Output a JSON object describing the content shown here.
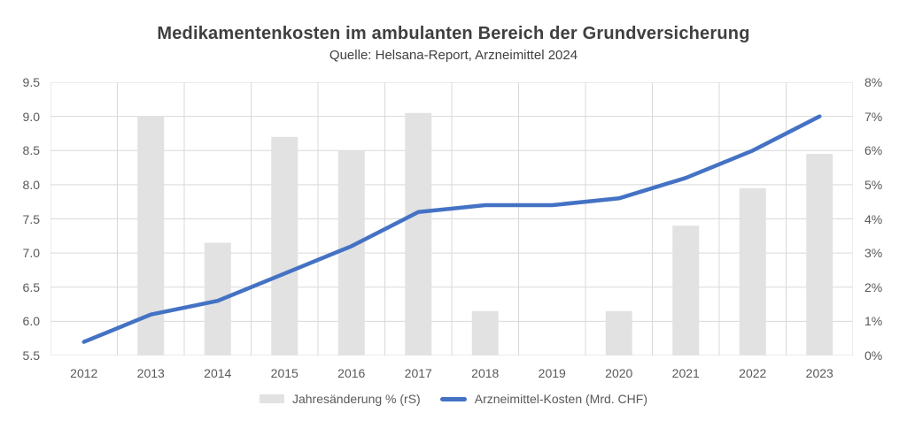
{
  "header": {
    "title": "Medikamentenkosten im ambulanten Bereich der Grundversicherung",
    "subtitle": "Quelle: Helsana-Report, Arzneimittel 2024"
  },
  "colors": {
    "line_series": "#4472c4",
    "bar_series": "#e2e2e2",
    "gridline": "#d9d9d9",
    "axis_text": "#595959",
    "title_text": "#3f3f3f"
  },
  "legend": {
    "items": [
      {
        "label": "Jahresänderung % (rS)",
        "swatch": "bar"
      },
      {
        "label": "Arzneimittel-Kosten (Mrd. CHF)",
        "swatch": "line"
      }
    ]
  },
  "chart_data": {
    "type": "bar",
    "subtype": "combo-bar-line-dual-axis",
    "title": "Medikamentenkosten im ambulanten Bereich der Grundversicherung",
    "subtitle": "Quelle: Helsana-Report, Arzneimittel 2024",
    "categories": [
      "2012",
      "2013",
      "2014",
      "2015",
      "2016",
      "2017",
      "2018",
      "2019",
      "2020",
      "2021",
      "2022",
      "2023"
    ],
    "series": [
      {
        "name": "Jahresänderung % (rS)",
        "type": "bar",
        "axis": "right",
        "unit": "%",
        "values": [
          null,
          7.0,
          3.3,
          6.4,
          6.0,
          7.1,
          1.3,
          0.0,
          1.3,
          3.8,
          4.9,
          5.9
        ]
      },
      {
        "name": "Arzneimittel-Kosten (Mrd. CHF)",
        "type": "line",
        "axis": "left",
        "unit": "Mrd. CHF",
        "values": [
          5.7,
          6.1,
          6.3,
          6.7,
          7.1,
          7.6,
          7.7,
          7.7,
          7.8,
          8.1,
          8.5,
          9.0
        ]
      }
    ],
    "left_axis": {
      "min": 5.5,
      "max": 9.5,
      "step": 0.5,
      "tick_labels_top_to_bottom": [
        "9.5",
        "9.0",
        "8.5",
        "8.0",
        "7.5",
        "7.0",
        "6.5",
        "6.0",
        "5.5"
      ]
    },
    "right_axis": {
      "min": 0,
      "max": 8,
      "step": 1,
      "tick_labels_top_to_bottom": [
        "8%",
        "7%",
        "6%",
        "5%",
        "4%",
        "3%",
        "2%",
        "1%",
        "0%"
      ]
    },
    "grid": true,
    "legend_position": "bottom",
    "xlabel": "",
    "ylabel_left": "",
    "ylabel_right": ""
  }
}
